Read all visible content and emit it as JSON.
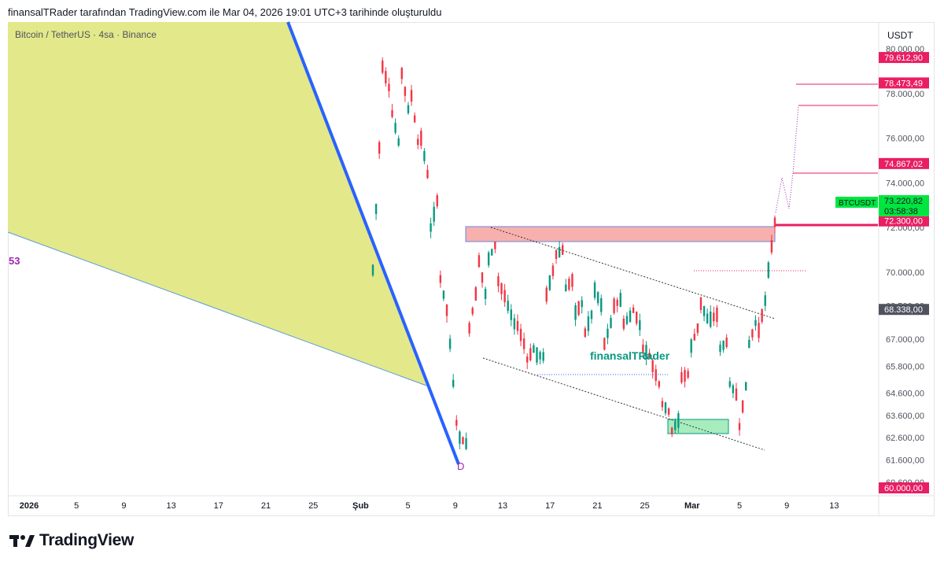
{
  "header": {
    "title": "finansalTRader tarafından TradingView.com ile Mar 04, 2026 19:01 UTC+3 tarihinde oluşturuldu",
    "symbol": "Bitcoin / TetherUS · 4sa · Binance",
    "currency": "USDT",
    "fib_label": "53",
    "watermark": "finansalTRader",
    "point_label": "D"
  },
  "footer": {
    "brand": "TradingView"
  },
  "chart_data": {
    "type": "candlestick",
    "symbol": "BTCUSDT",
    "interval": "4sa",
    "y_axis": {
      "ticks": [
        "80.000,00",
        "78.000,00",
        "76.000,00",
        "74.000,00",
        "72.000,00",
        "70.000,00",
        "68.500,00",
        "67.000,00",
        "65.800,00",
        "64.600,00",
        "63.600,00",
        "62.600,00",
        "61.600,00",
        "60.600,00"
      ],
      "ylim": [
        60000,
        81200
      ]
    },
    "x_axis": {
      "ticks": [
        "2026",
        "5",
        "9",
        "13",
        "17",
        "21",
        "25",
        "Şub",
        "5",
        "9",
        "13",
        "17",
        "21",
        "25",
        "Mar",
        "5",
        "9",
        "13"
      ]
    },
    "price_labels": [
      {
        "text": "79.612,90",
        "color": "#e91e63"
      },
      {
        "text": "78.473,49",
        "color": "#e91e63"
      },
      {
        "text": "74.867,02",
        "color": "#e91e63"
      },
      {
        "text": "72.300,00",
        "color": "#e91e63"
      },
      {
        "text": "68.338,00",
        "color": "#50535e"
      },
      {
        "text": "60.000,00",
        "color": "#e91e63"
      }
    ],
    "last_price": {
      "symbol": "BTCUSDT",
      "price": "73.220,82",
      "countdown": "03:58:38",
      "color": "#00e640"
    },
    "series": [
      {
        "name": "BTCUSDT",
        "ohlc_path": [
          [
            70100,
            78300
          ],
          [
            79200,
            77800
          ],
          [
            77100,
            75200
          ],
          [
            78900,
            76500
          ],
          [
            77900,
            74800
          ],
          [
            76000,
            73600
          ],
          [
            72000,
            73800
          ],
          [
            69700,
            67600
          ],
          [
            66800,
            61500
          ],
          [
            62600,
            62200
          ],
          [
            67500,
            69800
          ],
          [
            70500,
            68300
          ],
          [
            70600,
            71500
          ],
          [
            69600,
            68600
          ],
          [
            68500,
            67300
          ],
          [
            67600,
            66400
          ],
          [
            66100,
            66800
          ],
          [
            66300,
            66200
          ],
          [
            69000,
            70600
          ],
          [
            70800,
            71100
          ],
          [
            69300,
            69800
          ],
          [
            68200,
            68800
          ],
          [
            67300,
            68500
          ],
          [
            69200,
            68200
          ],
          [
            66800,
            68200
          ],
          [
            68500,
            68900
          ],
          [
            67700,
            68200
          ],
          [
            68300,
            67300
          ],
          [
            66600,
            66100
          ],
          [
            65800,
            64600
          ],
          [
            64100,
            63600
          ],
          [
            62900,
            63600
          ],
          [
            65300,
            65500
          ],
          [
            66700,
            67900
          ],
          [
            68600,
            67600
          ],
          [
            67900,
            68200
          ],
          [
            66600,
            67000
          ],
          [
            65000,
            64300
          ],
          [
            63100,
            65800
          ],
          [
            66800,
            68200
          ],
          [
            67400,
            69400
          ],
          [
            70100,
            73300
          ]
        ]
      }
    ],
    "annotations": [
      "resistance zone 71.500-72.000 (red box)",
      "support zone 62.400-62.900 (green box)",
      "descending channel (dotted lines)",
      "projection to 74.867,02, 78.473,49, 79.612,90"
    ],
    "colors": {
      "up": "#089981",
      "down": "#f23645",
      "fib_fill": "#e3e88a",
      "trendline": "#2962ff",
      "target": "#e91e63"
    }
  }
}
